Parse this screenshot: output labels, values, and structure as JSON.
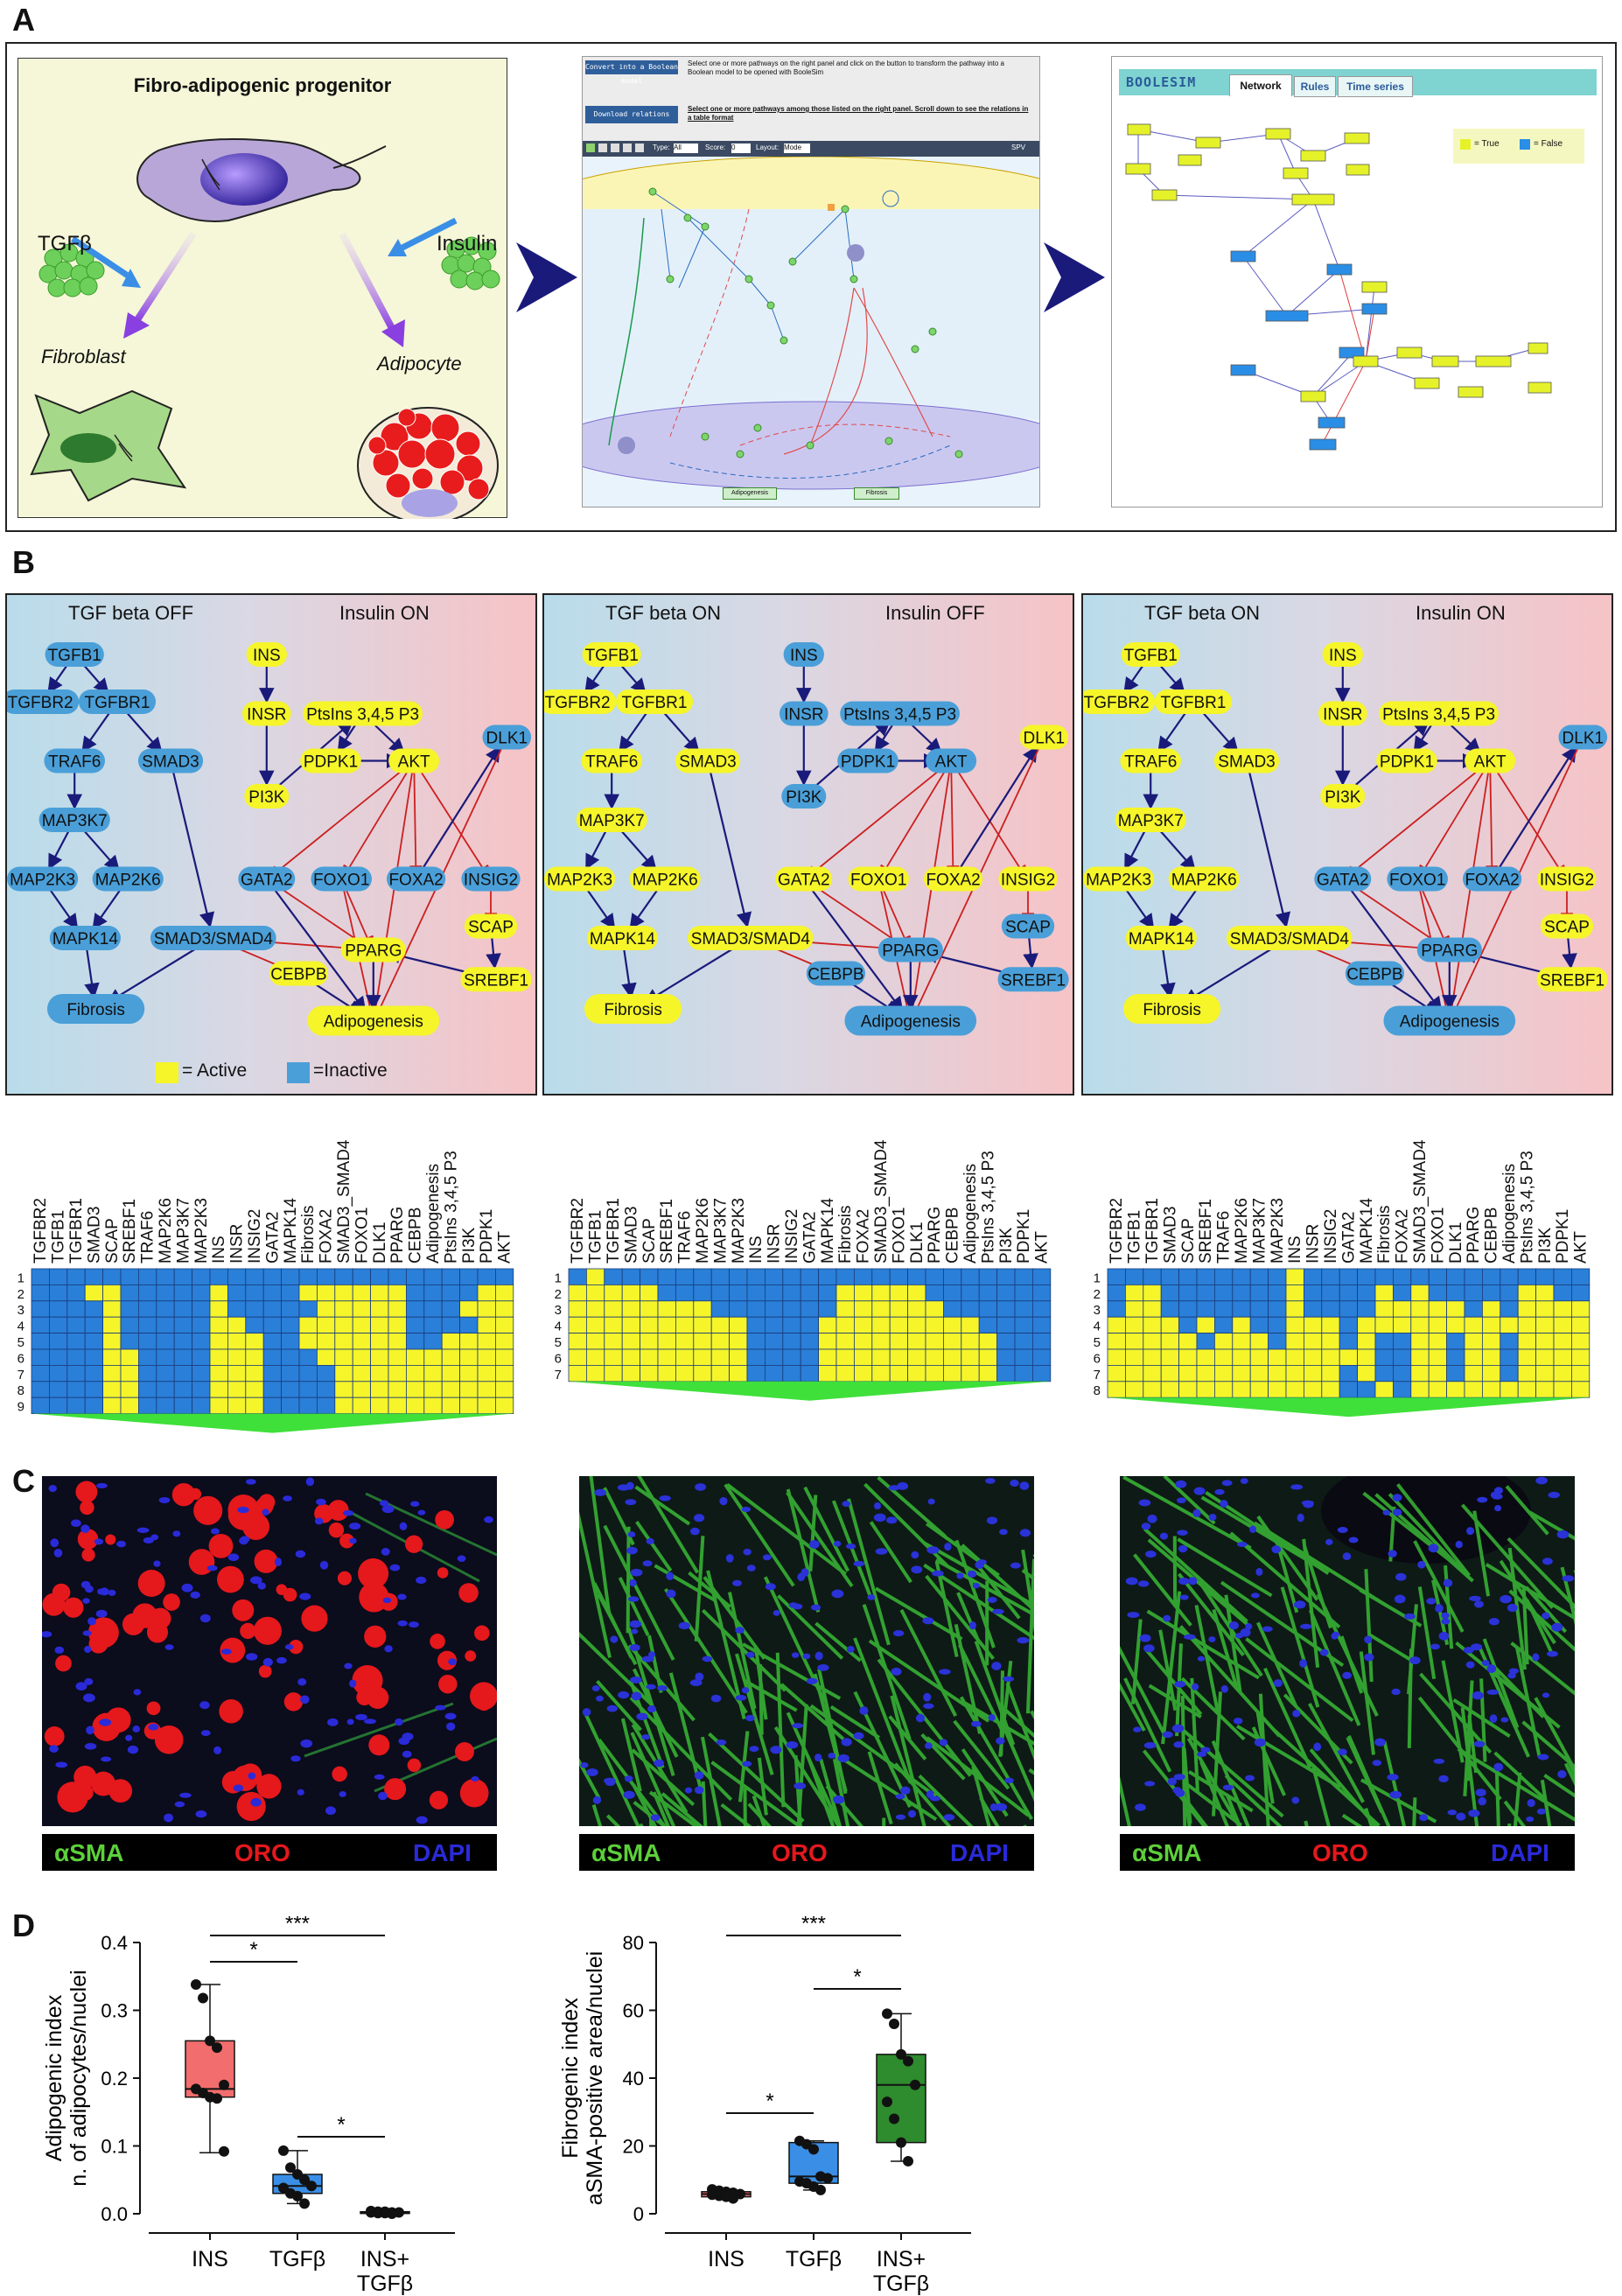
{
  "panels": {
    "a": "A",
    "b": "B",
    "c": "C",
    "d": "D"
  },
  "panelA": {
    "cell_title": "Fibro-adipogenic progenitor",
    "tgf_label": "TGFβ",
    "insulin_label": "Insulin",
    "fibroblast_label": "Fibroblast",
    "adipocyte_label": "Adipocyte",
    "db_button_convert": "Convert into a Boolean model",
    "db_convert_text": "Select one or more pathways on the right panel and click on the button to transform the pathway into a Boolean model to be opened with BooleSim",
    "db_button_download": "Download relations",
    "db_download_text": "Select one or more pathways among those listed on the right panel. Scroll down to see the relations in a table format",
    "db_toolbar": {
      "type": "Type:",
      "type_val": "All",
      "score": "Score:",
      "score_val": "0",
      "layout": "Layout:",
      "layout_val": "Mode",
      "spv": "SPV"
    },
    "db_output_labels": [
      "Adipogenesis",
      "Fibrosis"
    ],
    "boolesim_logo": "BOOLESIM",
    "boolesim_tabs": [
      "Network",
      "Rules",
      "Time series"
    ],
    "boolesim_legend_true": "= True",
    "boolesim_legend_false": "= False"
  },
  "panelB": {
    "nets": [
      {
        "left": "TGF beta OFF",
        "right": "Insulin ON"
      },
      {
        "left": "TGF beta ON",
        "right": "Insulin OFF"
      },
      {
        "left": "TGF beta ON",
        "right": "Insulin ON"
      }
    ],
    "legend_active": "= Active",
    "legend_inactive": "=Inactive",
    "heat_columns": [
      "TGFBR2",
      "TGFB1",
      "TGFBR1",
      "SMAD3",
      "SCAP",
      "SREBF1",
      "TRAF6",
      "MAP2K6",
      "MAP3K7",
      "MAP2K3",
      "INS",
      "INSR",
      "INSIG2",
      "GATA2",
      "MAPK14",
      "Fibrosis",
      "FOXA2",
      "SMAD3_SMAD4",
      "FOXO1",
      "DLK1",
      "PPARG",
      "CEBPB",
      "Adipogenesis",
      "PtsIns 3,4,5 P3",
      "PI3K",
      "PDPK1",
      "AKT"
    ],
    "heatmaps": [
      {
        "rows": [
          "1",
          "2",
          "3",
          "4",
          "5",
          "6",
          "7",
          "8",
          "9"
        ]
      },
      {
        "rows": [
          "1",
          "2",
          "3",
          "4",
          "5",
          "6",
          "7"
        ]
      },
      {
        "rows": [
          "1",
          "2",
          "3",
          "4",
          "5",
          "6",
          "7",
          "8"
        ]
      }
    ]
  },
  "panelC": {
    "legend": {
      "a": "αSMA",
      "b": "ORO",
      "c": "DAPI"
    }
  },
  "chart_data": [
    {
      "type": "box",
      "ylabel": "Adipogenic index",
      "ylabel2": "n. of adipocytes/nuclei",
      "categories": [
        "INS",
        "TGFβ",
        "INS+\nTGFβ"
      ],
      "yticks": [
        "0.0",
        "0.1",
        "0.2",
        "0.3",
        "0.4"
      ],
      "ylim": [
        0,
        0.4
      ],
      "colors": [
        "#f26d6d",
        "#3a8ee6",
        "#e05a5a"
      ],
      "boxes": [
        {
          "min": 0.09,
          "q1": 0.172,
          "median": 0.184,
          "q3": 0.255,
          "max": 0.338
        },
        {
          "min": 0.015,
          "q1": 0.03,
          "median": 0.041,
          "q3": 0.058,
          "max": 0.093
        },
        {
          "min": 0.0,
          "q1": 0.001,
          "median": 0.002,
          "q3": 0.003,
          "max": 0.004
        }
      ],
      "points": [
        [
          0.338,
          0.318,
          0.255,
          0.245,
          0.19,
          0.184,
          0.178,
          0.172,
          0.17,
          0.092
        ],
        [
          0.093,
          0.068,
          0.058,
          0.05,
          0.041,
          0.038,
          0.03,
          0.026,
          0.015
        ],
        [
          0.004,
          0.003,
          0.003,
          0.002,
          0.002,
          0.002,
          0.001,
          0.001,
          0.0
        ]
      ],
      "significance": [
        {
          "from": 0,
          "to": 1,
          "label": "*"
        },
        {
          "from": 1,
          "to": 2,
          "label": "*"
        },
        {
          "from": 0,
          "to": 2,
          "label": "***"
        }
      ]
    },
    {
      "type": "box",
      "ylabel": "Fibrogenic index",
      "ylabel2": "aSMA-positive area/nuclei",
      "categories": [
        "INS",
        "TGFβ",
        "INS+\nTGFβ"
      ],
      "yticks": [
        "0",
        "20",
        "40",
        "60",
        "80"
      ],
      "ylim": [
        0,
        80
      ],
      "colors": [
        "#f26d6d",
        "#3a8ee6",
        "#2e8b2e"
      ],
      "boxes": [
        {
          "min": 4.5,
          "q1": 5.0,
          "median": 5.8,
          "q3": 6.5,
          "max": 7.2
        },
        {
          "min": 7.0,
          "q1": 9.0,
          "median": 11.0,
          "q3": 21.0,
          "max": 21.5
        },
        {
          "min": 15.5,
          "q1": 21.0,
          "median": 38.0,
          "q3": 47.0,
          "max": 59.0
        }
      ],
      "points": [
        [
          7.2,
          6.8,
          6.5,
          6.2,
          5.8,
          5.6,
          5.3,
          5.0,
          4.5
        ],
        [
          21.5,
          20.5,
          19.0,
          11.0,
          10.5,
          9.5,
          9.0,
          8.0,
          7.0
        ],
        [
          59.0,
          56.0,
          47.0,
          45.0,
          38.0,
          33.0,
          28.0,
          21.0,
          15.5
        ]
      ],
      "significance": [
        {
          "from": 0,
          "to": 1,
          "label": "*"
        },
        {
          "from": 1,
          "to": 2,
          "label": "*"
        },
        {
          "from": 0,
          "to": 2,
          "label": "***"
        }
      ]
    }
  ],
  "colors": {
    "active": "#f5f52a",
    "inactive": "#4a9fd8",
    "inhibit": "#cc1f1f",
    "activate": "#1a1a7a"
  }
}
